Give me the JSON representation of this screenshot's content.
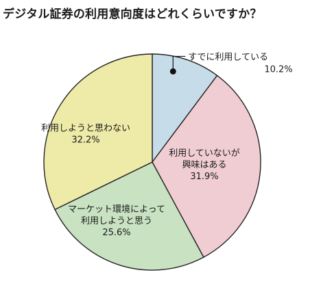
{
  "title": "デジタル証券の利用意向度はどれくらいですか？",
  "chart_data": {
    "type": "pie",
    "title": "デジタル証券の利用意向度はどれくらいですか？",
    "slices": [
      {
        "label": "すでに利用している",
        "value": 10.2,
        "value_text": "10.2%",
        "color": "#c6dde9"
      },
      {
        "label": "利用していないが興味はある",
        "label_lines": [
          "利用していないが",
          "興味はある"
        ],
        "value": 31.9,
        "value_text": "31.9%",
        "color": "#f0cdd2"
      },
      {
        "label": "マーケット環境によって利用しようと思う",
        "label_lines": [
          "マーケット環境によって",
          "利用しようと思う"
        ],
        "value": 25.6,
        "value_text": "25.6%",
        "color": "#c8e2c2"
      },
      {
        "label": "利用しようと思わない",
        "value": 32.2,
        "value_text": "32.2%",
        "color": "#eeeaa8"
      }
    ],
    "start": "12 o'clock",
    "direction": "clockwise",
    "legend": "none"
  }
}
